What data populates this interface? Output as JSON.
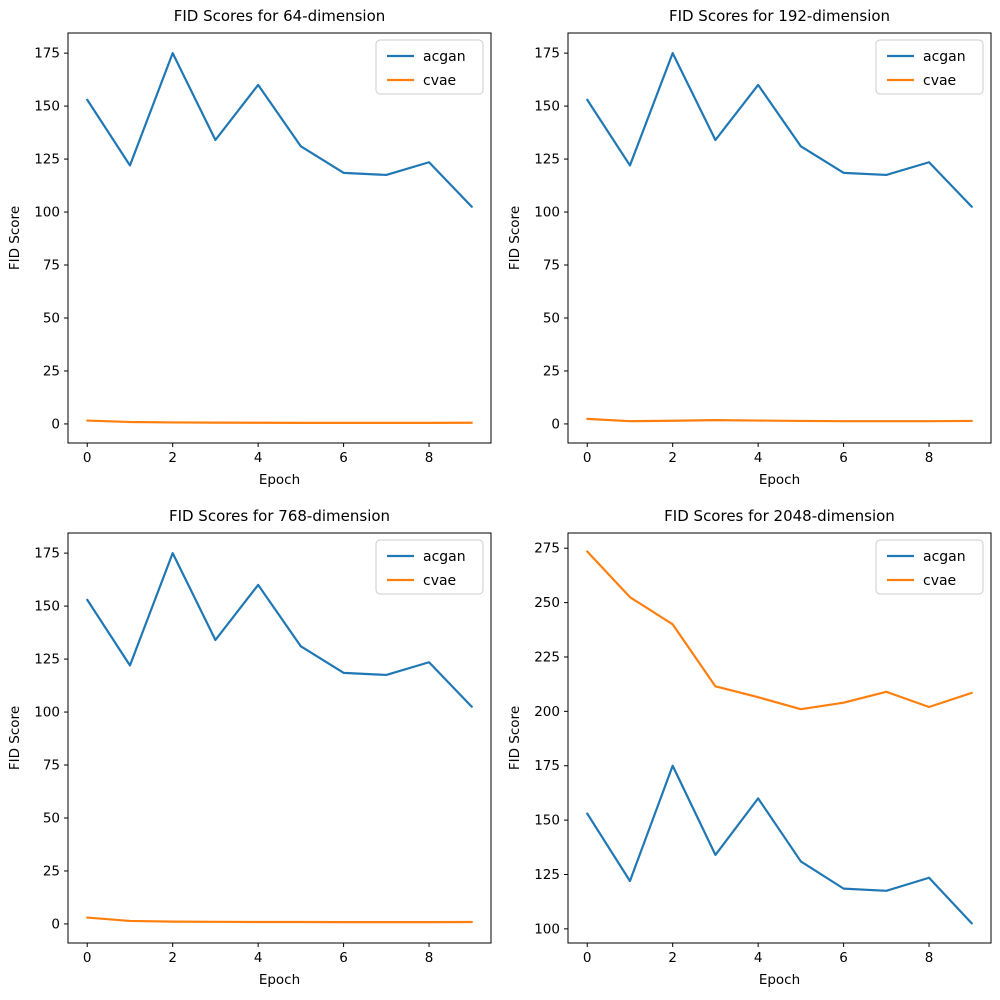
{
  "figure": {
    "background": "#ffffff",
    "text_color": "#000000",
    "spine_color": "#000000",
    "legend_border_color": "#cccccc",
    "series_colors": {
      "acgan": "#1f77b4",
      "cvae": "#ff7f0e"
    }
  },
  "chart_data": [
    {
      "type": "line",
      "title": "FID Scores for 64-dimension",
      "xlabel": "Epoch",
      "ylabel": "FID Score",
      "x": [
        0,
        1,
        2,
        3,
        4,
        5,
        6,
        7,
        8,
        9
      ],
      "xticks": [
        0,
        2,
        4,
        6,
        8
      ],
      "yticks": [
        0,
        25,
        50,
        75,
        100,
        125,
        150,
        175
      ],
      "xlim": [
        -0.45,
        9.45
      ],
      "ylim": [
        -9,
        184.5
      ],
      "grid": false,
      "legend_position": "upper right",
      "series": [
        {
          "name": "acgan",
          "color": "#1f77b4",
          "values": [
            153,
            122,
            175,
            134,
            160,
            131,
            118.5,
            117.5,
            123.5,
            102.5
          ]
        },
        {
          "name": "cvae",
          "color": "#ff7f0e",
          "values": [
            1.6,
            0.9,
            0.7,
            0.6,
            0.55,
            0.5,
            0.5,
            0.5,
            0.5,
            0.55
          ]
        }
      ]
    },
    {
      "type": "line",
      "title": "FID Scores for 192-dimension",
      "xlabel": "Epoch",
      "ylabel": "FID Score",
      "x": [
        0,
        1,
        2,
        3,
        4,
        5,
        6,
        7,
        8,
        9
      ],
      "xticks": [
        0,
        2,
        4,
        6,
        8
      ],
      "yticks": [
        0,
        25,
        50,
        75,
        100,
        125,
        150,
        175
      ],
      "xlim": [
        -0.45,
        9.45
      ],
      "ylim": [
        -9,
        184.5
      ],
      "grid": false,
      "legend_position": "upper right",
      "series": [
        {
          "name": "acgan",
          "color": "#1f77b4",
          "values": [
            153,
            122,
            175,
            134,
            160,
            131,
            118.5,
            117.5,
            123.5,
            102.5
          ]
        },
        {
          "name": "cvae",
          "color": "#ff7f0e",
          "values": [
            2.4,
            1.3,
            1.5,
            1.8,
            1.6,
            1.4,
            1.3,
            1.3,
            1.3,
            1.4
          ]
        }
      ]
    },
    {
      "type": "line",
      "title": "FID Scores for 768-dimension",
      "xlabel": "Epoch",
      "ylabel": "FID Score",
      "x": [
        0,
        1,
        2,
        3,
        4,
        5,
        6,
        7,
        8,
        9
      ],
      "xticks": [
        0,
        2,
        4,
        6,
        8
      ],
      "yticks": [
        0,
        25,
        50,
        75,
        100,
        125,
        150,
        175
      ],
      "xlim": [
        -0.45,
        9.45
      ],
      "ylim": [
        -9,
        184.5
      ],
      "grid": false,
      "legend_position": "upper right",
      "series": [
        {
          "name": "acgan",
          "color": "#1f77b4",
          "values": [
            153,
            122,
            175,
            134,
            160,
            131,
            118.5,
            117.5,
            123.5,
            102.5
          ]
        },
        {
          "name": "cvae",
          "color": "#ff7f0e",
          "values": [
            3.0,
            1.4,
            1.1,
            1.0,
            0.9,
            0.9,
            0.85,
            0.85,
            0.85,
            0.9
          ]
        }
      ]
    },
    {
      "type": "line",
      "title": "FID Scores for 2048-dimension",
      "xlabel": "Epoch",
      "ylabel": "FID Score",
      "x": [
        0,
        1,
        2,
        3,
        4,
        5,
        6,
        7,
        8,
        9
      ],
      "xticks": [
        0,
        2,
        4,
        6,
        8
      ],
      "yticks": [
        100,
        125,
        150,
        175,
        200,
        225,
        250,
        275
      ],
      "xlim": [
        -0.45,
        9.45
      ],
      "ylim": [
        93.5,
        282
      ],
      "grid": false,
      "legend_position": "upper right",
      "series": [
        {
          "name": "acgan",
          "color": "#1f77b4",
          "values": [
            153,
            122,
            175,
            134,
            160,
            131,
            118.5,
            117.5,
            123.5,
            102.5
          ]
        },
        {
          "name": "cvae",
          "color": "#ff7f0e",
          "values": [
            273.5,
            252.5,
            240,
            211.5,
            206.5,
            201,
            204,
            209,
            202,
            208.5
          ]
        }
      ]
    }
  ]
}
